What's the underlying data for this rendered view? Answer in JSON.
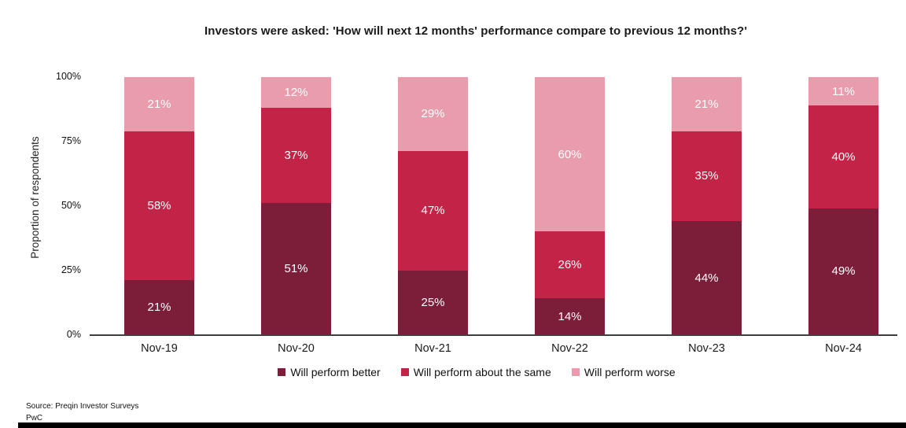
{
  "title": "Investors were asked: 'How will next 12 months' performance compare to previous 12 months?'",
  "y_axis": {
    "label": "Proportion of respondents",
    "ticks": [
      "100%",
      "75%",
      "50%",
      "25%",
      "0%"
    ]
  },
  "chart_data": {
    "type": "bar",
    "stacked": true,
    "stacked_to_100_percent": true,
    "categories": [
      "Nov-19",
      "Nov-20",
      "Nov-21",
      "Nov-22",
      "Nov-23",
      "Nov-24"
    ],
    "series": [
      {
        "name": "Will perform better",
        "color": "#7C1E3A",
        "values": [
          21,
          51,
          25,
          14,
          44,
          49
        ]
      },
      {
        "name": "Will perform about the same",
        "color": "#C22346",
        "values": [
          58,
          37,
          47,
          26,
          35,
          40
        ]
      },
      {
        "name": "Will perform worse",
        "color": "#E89CAC",
        "values": [
          21,
          12,
          29,
          60,
          21,
          11
        ]
      }
    ],
    "value_suffix": "%",
    "title": "Investors were asked: 'How will next 12 months' performance compare to previous 12 months?'",
    "xlabel": "",
    "ylabel": "Proportion of respondents",
    "ylim": [
      0,
      100
    ],
    "grid": false,
    "legend_position": "bottom",
    "data_labels": "inside-center-white"
  },
  "footer": {
    "source_line": "Source: Preqin Investor Surveys",
    "brand_line": "PwC"
  },
  "colors": {
    "axis_line": "#3F3F3F",
    "bar_label_text": "#FFFFFF",
    "footer_bar": "#000000",
    "title_text": "#1A1A1A"
  }
}
